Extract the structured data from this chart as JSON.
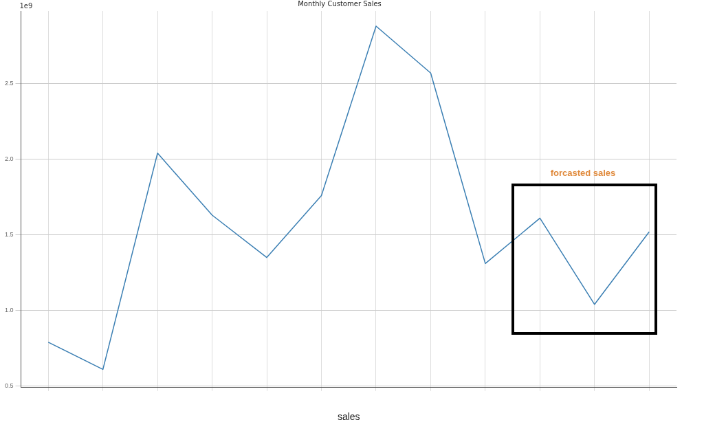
{
  "chart_data": {
    "type": "line",
    "title": "Monthly Customer Sales",
    "xlabel": "sales",
    "categories": [
      null,
      null,
      null,
      null,
      null,
      null,
      null,
      null,
      null,
      null,
      null,
      null
    ],
    "series": [
      {
        "color": "#3b7fb3",
        "values": [
          0.79,
          0.61,
          2.04,
          1.63,
          1.35,
          1.76,
          2.88,
          2.57,
          1.31,
          1.61,
          1.04,
          1.52
        ]
      }
    ],
    "ylim": [
      0.49,
      2.98
    ],
    "yticks": [
      0.5,
      {
        "value": 1,
        "label": "1.0"
      },
      1.5,
      {
        "value": 2,
        "label": "2.0"
      },
      2.5
    ],
    "annotations": [
      "1e9",
      "forcasted sales"
    ],
    "grid": true,
    "legend": false,
    "marker": "none",
    "line_style": "solid"
  }
}
